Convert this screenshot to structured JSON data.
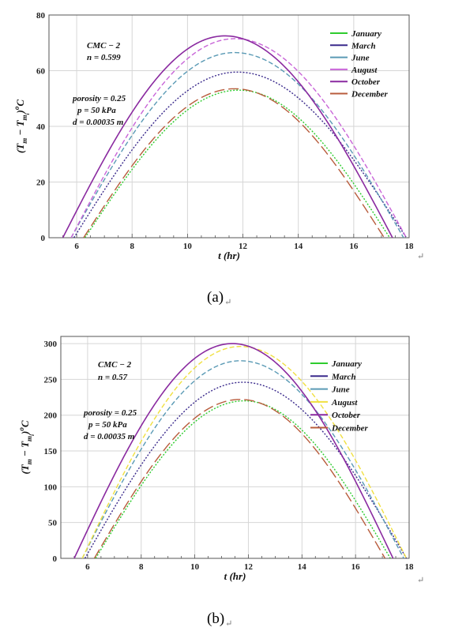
{
  "chart_data": [
    {
      "type": "line",
      "panel_label": "(a)",
      "xlabel": "t (hr)",
      "ylabel": "(T_m − T_mi) °C",
      "xlim": [
        5,
        18
      ],
      "ylim": [
        0,
        80
      ],
      "x_ticks": [
        6,
        8,
        10,
        12,
        14,
        16,
        18
      ],
      "y_ticks": [
        0,
        20,
        40,
        60,
        80
      ],
      "grid": true,
      "legend_position": "top-right",
      "annotations": [
        "CMC − 2",
        "n = 0.599",
        "porosity = 0.25",
        "p =  50 kPa",
        "d =  0.00035 m"
      ],
      "series": [
        {
          "name": "January",
          "color": "#2ecc2e",
          "dash": "dotted",
          "peak_x": 11.85,
          "peak_y": 53,
          "start_x": 6.3,
          "end_x": 17.3
        },
        {
          "name": "March",
          "color": "#3a2a8c",
          "dash": "dotted",
          "peak_x": 11.8,
          "peak_y": 59.5,
          "start_x": 5.9,
          "end_x": 17.9
        },
        {
          "name": "June",
          "color": "#5a9ab5",
          "dash": "dashed",
          "peak_x": 11.7,
          "peak_y": 66.5,
          "start_x": 5.8,
          "end_x": 17.8
        },
        {
          "name": "August",
          "color": "#c864d8",
          "dash": "dashed",
          "peak_x": 11.7,
          "peak_y": 71.5,
          "start_x": 5.8,
          "end_x": 17.9
        },
        {
          "name": "October",
          "color": "#8a2aa0",
          "dash": "solid",
          "peak_x": 11.35,
          "peak_y": 72.5,
          "start_x": 5.5,
          "end_x": 17.4
        },
        {
          "name": "December",
          "color": "#b85c3c",
          "dash": "longdash",
          "peak_x": 11.7,
          "peak_y": 53.5,
          "start_x": 6.25,
          "end_x": 17.1
        }
      ]
    },
    {
      "type": "line",
      "panel_label": "(b)",
      "xlabel": "t (hr)",
      "ylabel": "(T_m − T_mi) °C",
      "xlim": [
        5,
        18
      ],
      "ylim": [
        0,
        310
      ],
      "x_ticks": [
        6,
        8,
        10,
        12,
        14,
        16,
        18
      ],
      "y_ticks": [
        0,
        50,
        100,
        150,
        200,
        250,
        300
      ],
      "grid": true,
      "legend_position": "top-right",
      "annotations": [
        "CMC − 2",
        "n = 0.57",
        "porosity = 0.25",
        "p =  50 kPa",
        "d =  0.00035 m"
      ],
      "series": [
        {
          "name": "January",
          "color": "#2ecc2e",
          "dash": "dotted",
          "peak_x": 11.85,
          "peak_y": 220,
          "start_x": 6.3,
          "end_x": 17.3
        },
        {
          "name": "March",
          "color": "#3a2a8c",
          "dash": "dotted",
          "peak_x": 11.8,
          "peak_y": 246,
          "start_x": 5.9,
          "end_x": 17.9
        },
        {
          "name": "June",
          "color": "#5a9ab5",
          "dash": "dashed",
          "peak_x": 11.7,
          "peak_y": 276,
          "start_x": 5.8,
          "end_x": 17.8
        },
        {
          "name": "August",
          "color": "#f0e040",
          "dash": "dashed",
          "peak_x": 11.7,
          "peak_y": 296,
          "start_x": 5.8,
          "end_x": 17.9
        },
        {
          "name": "October",
          "color": "#8a2aa0",
          "dash": "solid",
          "peak_x": 11.4,
          "peak_y": 300,
          "start_x": 5.5,
          "end_x": 17.4
        },
        {
          "name": "December",
          "color": "#b85c3c",
          "dash": "longdash",
          "peak_x": 11.7,
          "peak_y": 222,
          "start_x": 6.25,
          "end_x": 17.1
        }
      ]
    }
  ],
  "captions": {
    "a": "(a)",
    "b": "(b)"
  },
  "return_mark": "↵"
}
